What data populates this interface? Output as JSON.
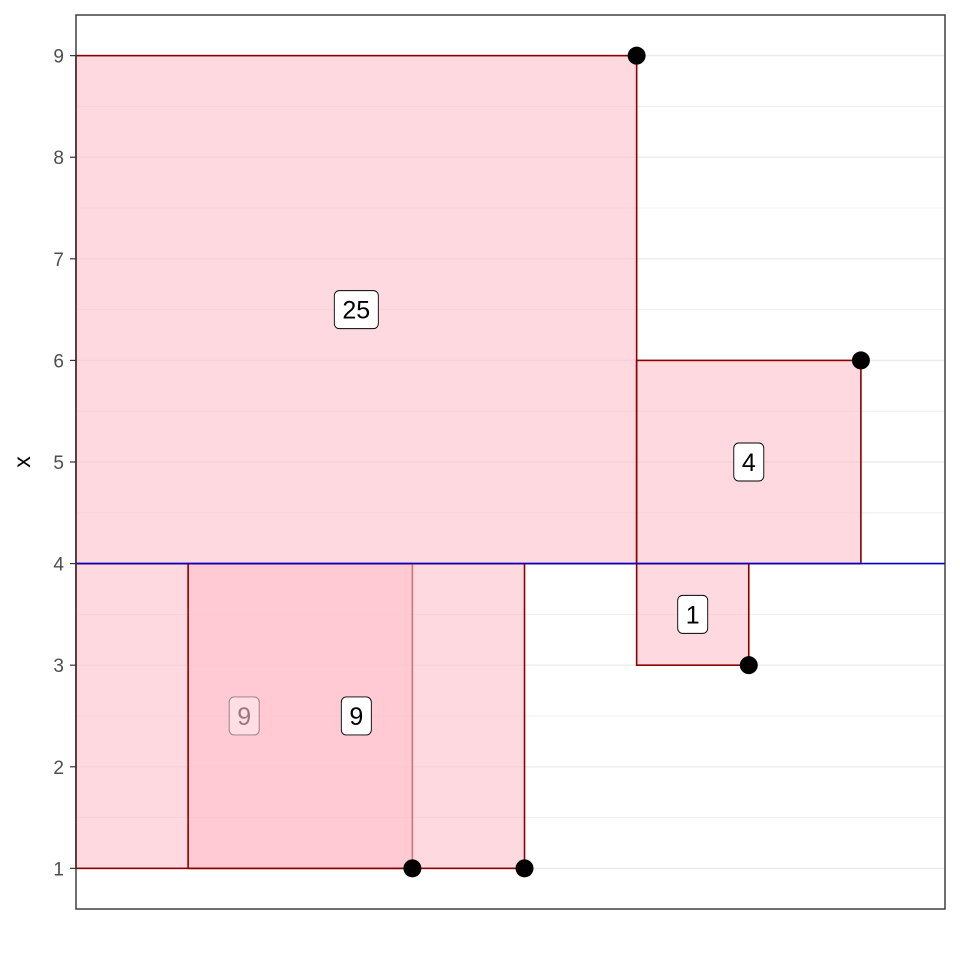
{
  "chart_data": {
    "type": "scatter",
    "title": "",
    "xlabel": "",
    "ylabel": "x",
    "xlim": [
      -0.5,
      7.25
    ],
    "ylim": [
      0.6,
      9.4
    ],
    "y_ticks": [
      1,
      2,
      3,
      4,
      5,
      6,
      7,
      8,
      9
    ],
    "x_ticks_shown": false,
    "grid": true,
    "mean_line": {
      "value": 4,
      "color": "#0000cc"
    },
    "points": [
      {
        "x": 2.5,
        "y": 1
      },
      {
        "x": 3.5,
        "y": 1
      },
      {
        "x": 4.5,
        "y": 9
      },
      {
        "x": 5.5,
        "y": 3
      },
      {
        "x": 6.5,
        "y": 6
      }
    ],
    "squares": [
      {
        "x0": -0.5,
        "x1": 2.5,
        "y0": 1,
        "y1": 4,
        "value": 9,
        "label_x": 1.0,
        "label_y": 2.5,
        "faded_label": true
      },
      {
        "x0": 0.5,
        "x1": 3.5,
        "y0": 1,
        "y1": 4,
        "value": 9,
        "label_x": 2.0,
        "label_y": 2.5,
        "faded_label": false
      },
      {
        "x0": -0.5,
        "x1": 4.5,
        "y0": 4,
        "y1": 9,
        "value": 25,
        "label_x": 2.0,
        "label_y": 6.5,
        "faded_label": false
      },
      {
        "x0": 4.5,
        "x1": 5.5,
        "y0": 3,
        "y1": 4,
        "value": 1,
        "label_x": 5.0,
        "label_y": 3.5,
        "faded_label": false
      },
      {
        "x0": 4.5,
        "x1": 6.5,
        "y0": 4,
        "y1": 6,
        "value": 4,
        "label_x": 5.5,
        "label_y": 5.0,
        "faded_label": false
      }
    ],
    "colors": {
      "square_fill": "#ffc0cb",
      "square_stroke": "#8b0000",
      "point": "#000000",
      "grid": "#ebebeb",
      "panel_border": "#333333"
    }
  }
}
